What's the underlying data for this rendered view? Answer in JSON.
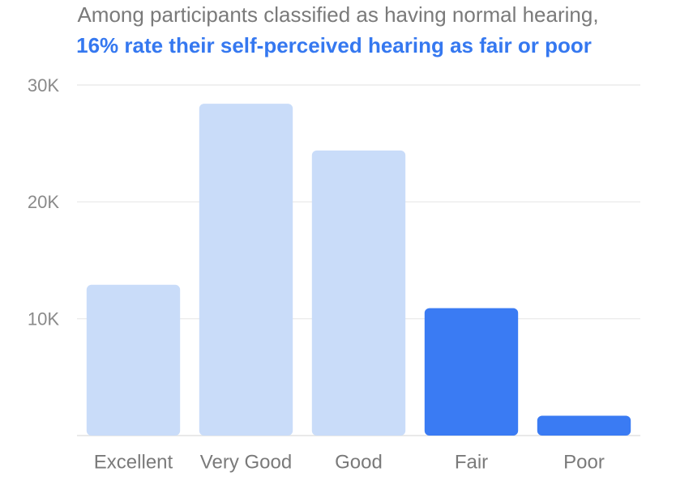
{
  "chart_data": {
    "type": "bar",
    "title": "Among participants classified as having normal hearing,",
    "subtitle": "16% rate their self-perceived hearing as fair or poor",
    "categories": [
      "Excellent",
      "Very Good",
      "Good",
      "Fair",
      "Poor"
    ],
    "values": [
      12900,
      28400,
      24400,
      10900,
      1700
    ],
    "colors": [
      "#c9dcf9",
      "#c9dcf9",
      "#c9dcf9",
      "#3a7bf3",
      "#3a7bf3"
    ],
    "ylim": [
      0,
      30000
    ],
    "yticks": [
      {
        "value": 10000,
        "label": "10K"
      },
      {
        "value": 20000,
        "label": "20K"
      },
      {
        "value": 30000,
        "label": "30K"
      }
    ],
    "grid": true
  }
}
